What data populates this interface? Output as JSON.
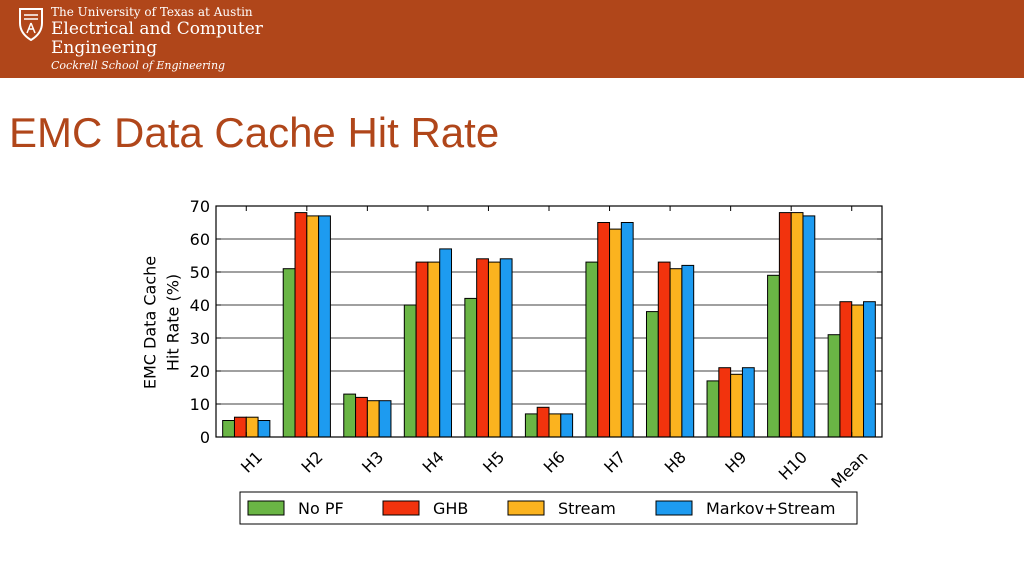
{
  "header": {
    "university": "The University of Texas at Austin",
    "department_line1": "Electrical and Computer",
    "department_line2": "Engineering",
    "school": "Cockrell School of Engineering",
    "logo_icon": "ut-seal-icon"
  },
  "slide": {
    "title": "EMC Data Cache Hit Rate"
  },
  "colors": {
    "banner": "#b0461a",
    "title": "#b0461a"
  },
  "chart_data": {
    "type": "bar",
    "title": "",
    "xlabel": "",
    "ylabel_lines": [
      "EMC Data Cache",
      "Hit Rate (%)"
    ],
    "ylim": [
      0,
      70
    ],
    "yticks": [
      0,
      10,
      20,
      30,
      40,
      50,
      60,
      70
    ],
    "grid": "horizontal",
    "legend_position": "bottom",
    "categories": [
      "H1",
      "H2",
      "H3",
      "H4",
      "H5",
      "H6",
      "H7",
      "H8",
      "H9",
      "H10",
      "Mean"
    ],
    "series": [
      {
        "name": "No PF",
        "color": "#6ab545",
        "values": [
          5,
          51,
          13,
          40,
          42,
          7,
          53,
          38,
          17,
          49,
          31
        ]
      },
      {
        "name": "GHB",
        "color": "#f2330d",
        "values": [
          6,
          68,
          12,
          53,
          54,
          9,
          65,
          53,
          21,
          68,
          41
        ]
      },
      {
        "name": "Stream",
        "color": "#fbb31f",
        "values": [
          6,
          67,
          11,
          53,
          53,
          7,
          63,
          51,
          19,
          68,
          40
        ]
      },
      {
        "name": "Markov+Stream",
        "color": "#1d9bf0",
        "values": [
          5,
          67,
          11,
          57,
          54,
          7,
          65,
          52,
          21,
          67,
          41
        ]
      }
    ]
  }
}
